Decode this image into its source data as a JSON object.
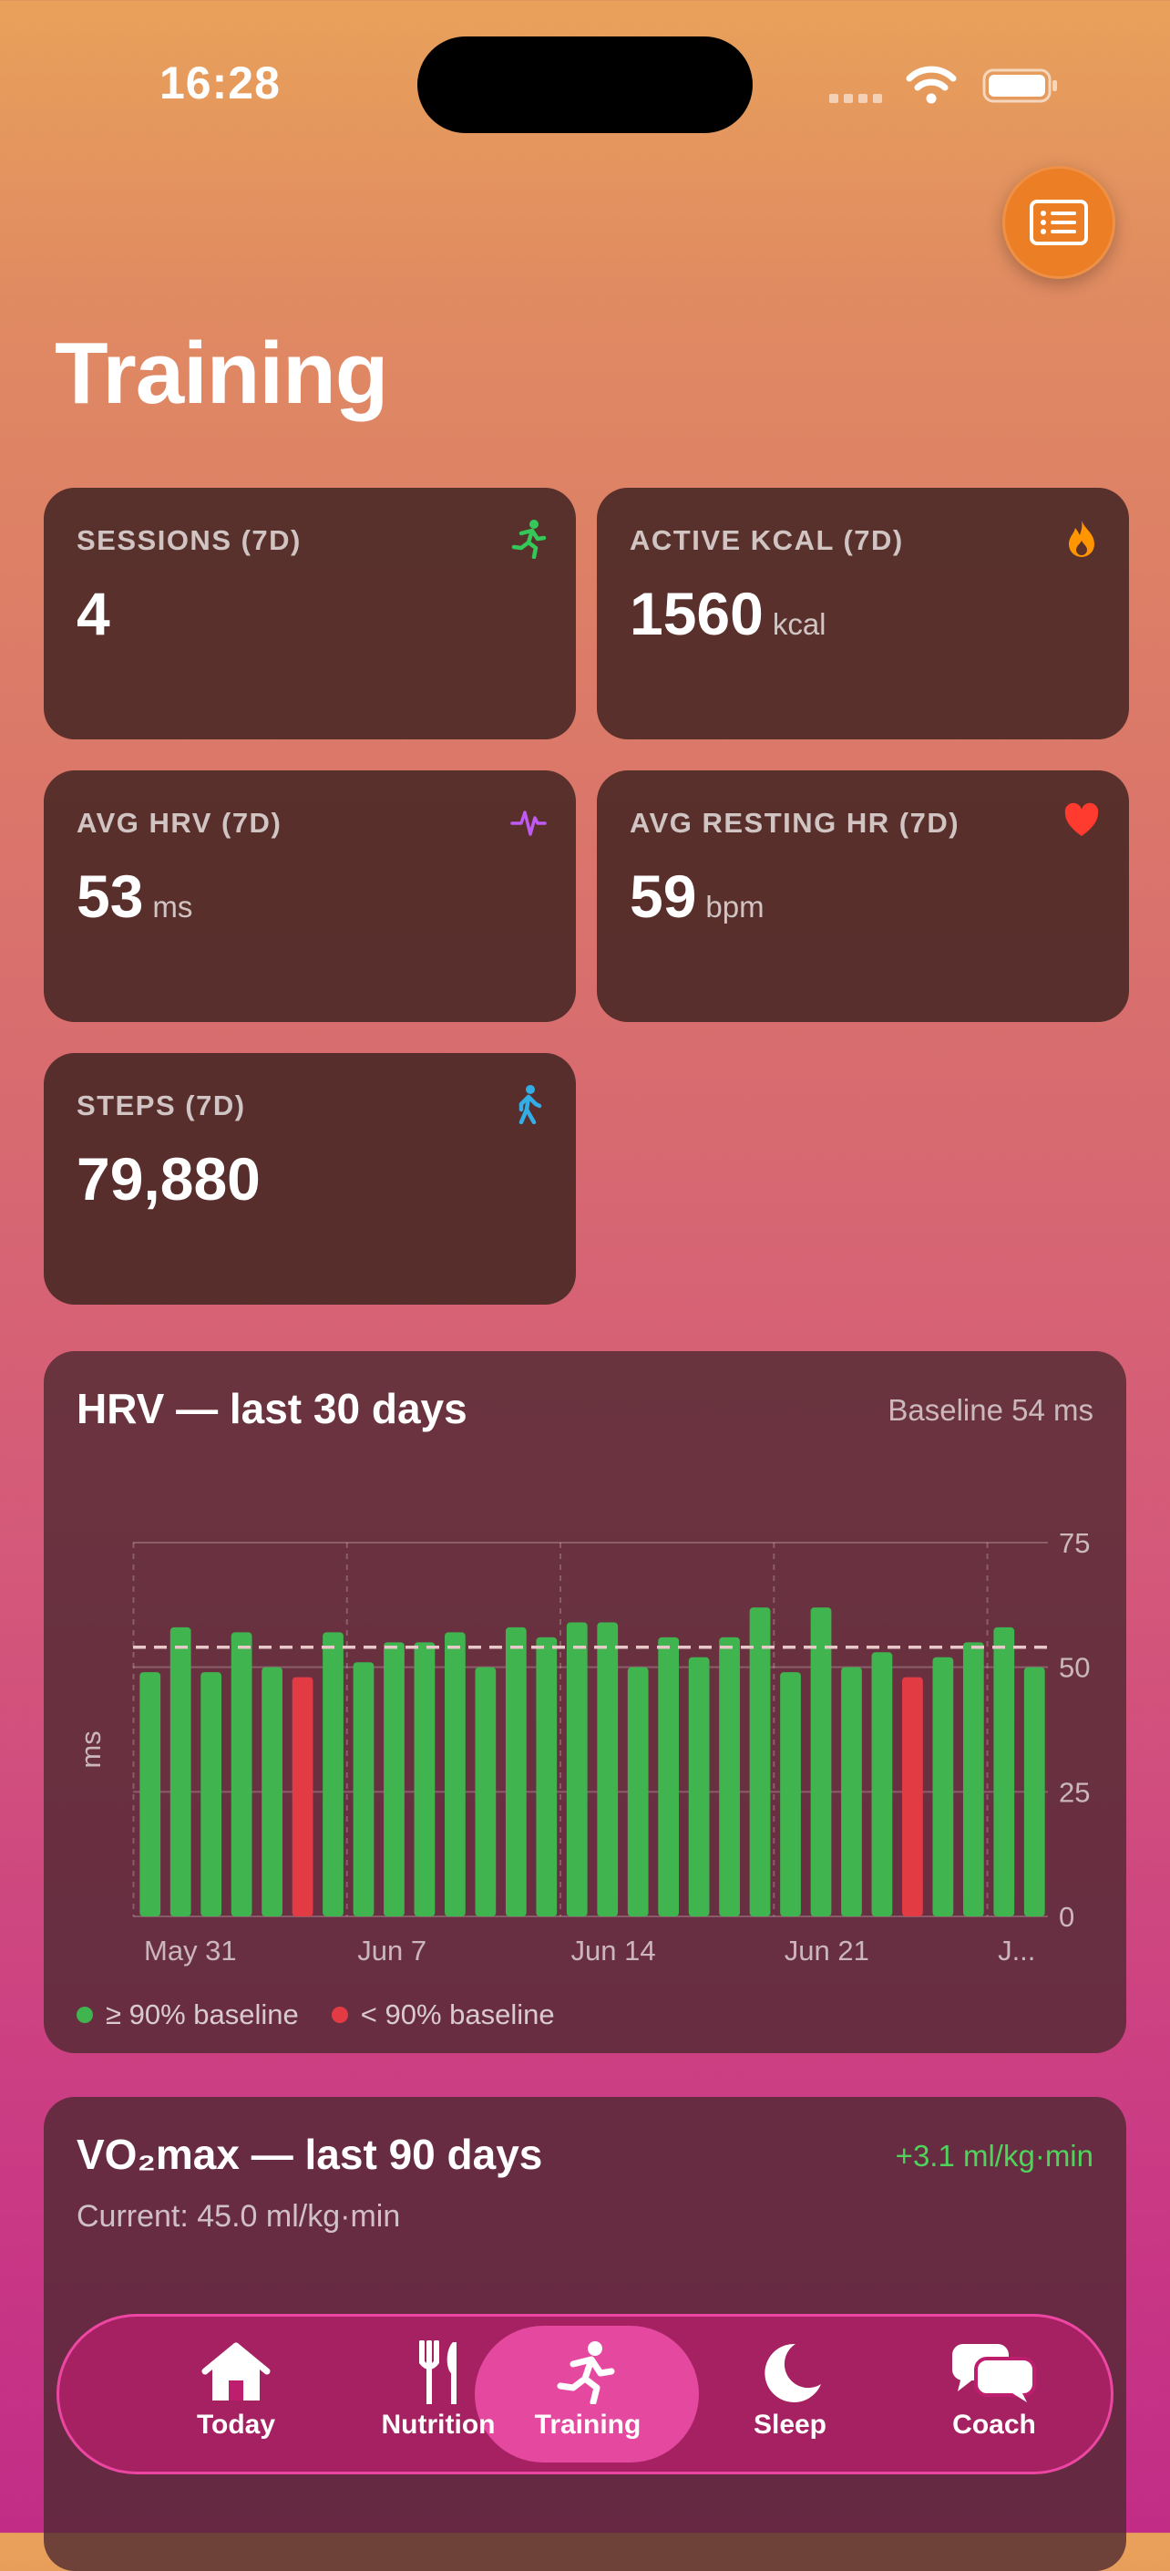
{
  "status": {
    "time": "16:28"
  },
  "page": {
    "title": "Training"
  },
  "stats": [
    {
      "label": "SESSIONS (7D)",
      "value": "4",
      "unit": "",
      "icon": "running-icon",
      "icon_color": "#34c759"
    },
    {
      "label": "ACTIVE KCAL (7D)",
      "value": "1560",
      "unit": "kcal",
      "icon": "flame-icon",
      "icon_color": "#ff9500"
    },
    {
      "label": "AVG HRV (7D)",
      "value": "53",
      "unit": "ms",
      "icon": "waveform-icon",
      "icon_color": "#bf5af2"
    },
    {
      "label": "AVG RESTING HR (7D)",
      "value": "59",
      "unit": "bpm",
      "icon": "heart-icon",
      "icon_color": "#ff3b30"
    },
    {
      "label": "STEPS (7D)",
      "value": "79,880",
      "unit": "",
      "icon": "walking-icon",
      "icon_color": "#32ade6"
    }
  ],
  "hrv_card": {
    "title": "HRV — last 30 days",
    "baseline_text": "Baseline 54 ms",
    "legend_good": "≥ 90% baseline",
    "legend_low": "< 90% baseline"
  },
  "chart_data": {
    "type": "bar",
    "ylabel": "ms",
    "ylim": [
      0,
      75
    ],
    "yticks": [
      "75",
      "50",
      "25",
      "0"
    ],
    "xticks": [
      "May 31",
      "Jun 7",
      "Jun 14",
      "Jun 21",
      "J..."
    ],
    "baseline": 54,
    "colors": {
      "good": "#3fb44f",
      "low": "#e23b44",
      "baseline": "#e8c8c8"
    },
    "values": [
      49,
      58,
      49,
      57,
      50,
      48,
      57,
      51,
      55,
      55,
      57,
      50,
      58,
      56,
      59,
      59,
      50,
      56,
      52,
      56,
      62,
      49,
      62,
      50,
      53,
      48,
      52,
      55,
      58,
      50
    ],
    "low_flags": [
      0,
      0,
      0,
      0,
      0,
      1,
      0,
      0,
      0,
      0,
      0,
      0,
      0,
      0,
      0,
      0,
      0,
      0,
      0,
      0,
      0,
      0,
      0,
      0,
      0,
      1,
      0,
      0,
      0,
      0
    ]
  },
  "vo2_card": {
    "title": "VO₂max — last 90 days",
    "delta": "+3.1 ml/kg·min",
    "current": "Current: 45.0 ml/kg·min"
  },
  "tabs": [
    {
      "label": "Today",
      "icon": "house-icon"
    },
    {
      "label": "Nutrition",
      "icon": "fork-knife-icon"
    },
    {
      "label": "Training",
      "icon": "running-icon",
      "active": true
    },
    {
      "label": "Sleep",
      "icon": "moon-icon"
    },
    {
      "label": "Coach",
      "icon": "chat-bubbles-icon"
    }
  ]
}
